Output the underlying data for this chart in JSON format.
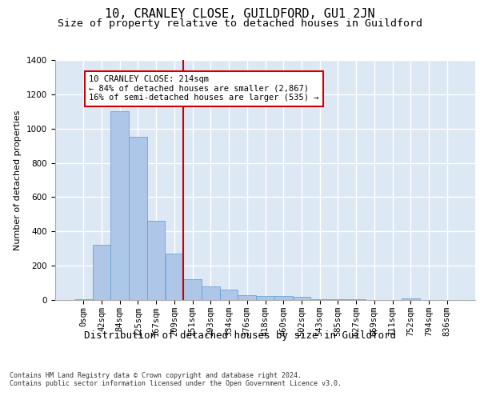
{
  "title": "10, CRANLEY CLOSE, GUILDFORD, GU1 2JN",
  "subtitle": "Size of property relative to detached houses in Guildford",
  "xlabel": "Distribution of detached houses by size in Guildford",
  "ylabel": "Number of detached properties",
  "categories": [
    "0sqm",
    "42sqm",
    "84sqm",
    "125sqm",
    "167sqm",
    "209sqm",
    "251sqm",
    "293sqm",
    "334sqm",
    "376sqm",
    "418sqm",
    "460sqm",
    "502sqm",
    "543sqm",
    "585sqm",
    "627sqm",
    "669sqm",
    "711sqm",
    "752sqm",
    "794sqm",
    "836sqm"
  ],
  "values": [
    3,
    320,
    1100,
    950,
    460,
    270,
    120,
    80,
    60,
    30,
    25,
    25,
    20,
    4,
    4,
    4,
    0,
    0,
    10,
    0,
    0
  ],
  "bar_color": "#aec6e8",
  "bar_edge_color": "#5b9bd5",
  "ylim": [
    0,
    1400
  ],
  "yticks": [
    0,
    200,
    400,
    600,
    800,
    1000,
    1200,
    1400
  ],
  "annotation_text": "10 CRANLEY CLOSE: 214sqm\n← 84% of detached houses are smaller (2,867)\n16% of semi-detached houses are larger (535) →",
  "vline_x": 5.5,
  "box_color": "#cc0000",
  "bg_color": "#dde8f5",
  "footer": "Contains HM Land Registry data © Crown copyright and database right 2024.\nContains public sector information licensed under the Open Government Licence v3.0.",
  "title_fontsize": 11,
  "subtitle_fontsize": 9.5,
  "xlabel_fontsize": 9,
  "ylabel_fontsize": 8,
  "tick_fontsize": 7.5,
  "footer_fontsize": 6,
  "ann_fontsize": 7.5
}
